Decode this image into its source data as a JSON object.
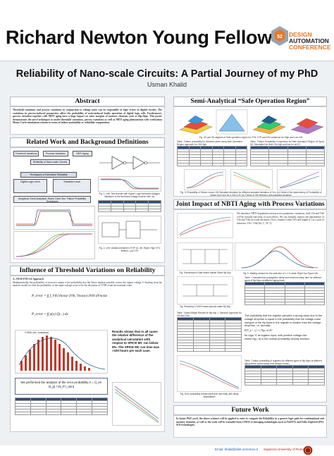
{
  "header": {
    "fellow_title": "Richard Newton Young Fellow",
    "logo_line1": "DESIGN",
    "logo_line2": "AUTOMATION",
    "logo_line3": "CONFERENCE"
  },
  "poster": {
    "title": "Reliability of Nano-scale Circuits: A Partial Journey of my PhD",
    "author": "Usman Khalid"
  },
  "sections": {
    "abstract": "Abstract",
    "related_work": "Related Work and Background Definitions",
    "influence": "Influence of Threshold Variations on Reliability",
    "semi_analytical": "Semi-Analytical “Safe Operation Region”",
    "nbti": "Joint Impact of NBTI Aging with Process Variations",
    "future_work": "Future Work"
  },
  "abstract_text": "Threshold variations and process variations in conjunction to voltage noise can be responsible of logic errors in digital circuits. The variations in process-induced parameters affect the probability of noise-induced faulty operation of digital logic cells. Furthermore, process variation together with NBTI aging have a huge impact on noise margins of memory elements such as flip-flops. This poster demonstrates the novel techniques to model threshold variations, process variations as well as NBTI aging phenomenon with verification Monte Carlo simulations scheme in terms of failure probability or reliability computation.",
  "related": {
    "nodes": [
      "Threshold Variations",
      "Process Variations",
      "NBTI Aging",
      "Reliability of Nano-scale Circuits",
      "Techniques of Estimation Reliability",
      "Digital Logic Level",
      "Transistor Level",
      "Analytical, Semi-Analytical, Monte Carlo Sim. Failure Probability Techniques"
    ],
    "fig1_caption": "Fig. 1. Left: Two inverter with Higher Logic threshold voltages. Variations of the threshold voltage inverter with Vin.",
    "fig2_caption": "Fig. 2. Left: Variation between VTHP vs. Vin. Right: High VTh; Bottom: Low VTh"
  },
  "influence": {
    "subhead": "A. ANALYTICAL Approach",
    "body": "Mathematically, the probability of incorrect output is the probability that the Vinox random variable crosses the output voltage V. Starting from the analytic model we find the probability of the input-voltage noise to be the deviation of VTHL from the nominal value.",
    "formula1": "P_error = ∫∫ f_Vth,Vnoise (Vth, Vnoise) dVth dVnoise",
    "formula2": "P_error = ∫∫ p(x) Q(...) dx",
    "results": "Results shows that in all cases the relative difference of the analytical calculation with respect to SPICE MC run below 5%. The SPICE MC run time was >100 hours per each case.",
    "perf": "We performed the analysis of the error probability A = (t_err N_p) / (N_P t_sim)",
    "chart_label": "0.0552 (MC   Analytical)"
  },
  "semi": {
    "fig_caption": "Fig. 2D and 3D diagram of Safe operation region for VTN, VTP and VIN variations for High and Low VIN",
    "table1_title": "Table : Failure probability for selected cases using Safe Operation Region approach for Vth High",
    "table2_title": "Table : Failure Probability Comparison for Safe Operation Region Vs Spice MC Simulation for Both Vth high and low for uf=0.1",
    "plot_caption": "Fig. 3: Probability of Failure versus Vth Standard deviation for different standard deviation of Vnc. (b) Detail of the dependency of Probability of failure from Vnc for a Vth=0.3V (e) Trends of Vth behavior with standard deviation"
  },
  "nbti": {
    "intro": "We introduce NBTI degradation and process parameters variations, both Vth and Vdd will be actually functions of such effects. We can formally express the dependence of Vth and Vdd on oxide thickness (Tox), channel width (W) and length (L) as a pair of functions Vth = Vth(Tox, L, W, T).",
    "fig_a": "Fig. Transmission Gate based master Slave flip-flop",
    "fig_b": "Fig. Restoring C-MOS based pseudo-static flip-flop",
    "fig_c": "Fig. 6. Waiting window for the selection of 1.1 V value. Right Top Figure Vth",
    "table_title": "Table : Noise Margin Results for flip-flop 1. Variance approach for Vth and Vdd",
    "table2_title": "Table : Characterized propagation delay and minimum setup time for different types of flip-flops at different aging times",
    "prob_text": "The probability that the register samples a wrong value due to the voltage drop/rise is equal to the probability that the voltage noise margins of the flip-flops in the register is smaller than the voltage drop/rise, i.e. formally:",
    "formula": "P(V_p < ε) = ∫ N(μ, σ) dV",
    "prob_text2": "for logic '0' at register input; with positive voltage rise",
    "where_text": "where N(μ, σ) is the normal probability density function",
    "fig_d": "Fig. Error probability results (fault-free and fault) with delay degradation",
    "table3_title": "Table : Failure probability of registers for different types of flip-flops at different aging times: (worst setup time design corner)"
  },
  "future": {
    "text": "In future PhD work, the above schemes will be applied to enter to compute the Reliability in a generic logic path for combinational and memory elements, as well as the work will be extended from CMOS to emerging technologies such as FinFETs and Fully Depleted (FD)-SOI technologies."
  },
  "footer": {
    "email": "Email: khalid@diet.uniroma1.it",
    "university": "Sapienza University of Rome, Italy"
  },
  "colors": {
    "accent": "#2f4b7c",
    "dac_orange": "#e87722",
    "poster_bg": "#eef1f4"
  }
}
